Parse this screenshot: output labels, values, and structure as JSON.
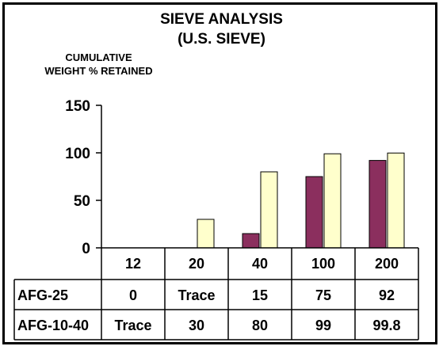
{
  "chart_data": {
    "type": "bar",
    "title": "SIEVE ANALYSIS",
    "subtitle": "(U.S. SIEVE)",
    "ylabel_line1": "CUMULATIVE",
    "ylabel_line2": "WEIGHT % RETAINED",
    "categories": [
      "12",
      "20",
      "40",
      "100",
      "200"
    ],
    "ylim": [
      0,
      150
    ],
    "yticks": [
      "0",
      "50",
      "100",
      "150"
    ],
    "grid": false,
    "series": [
      {
        "name": "AFG-25",
        "values": [
          0,
          0,
          15,
          75,
          92
        ],
        "labels": [
          "0",
          "Trace",
          "15",
          "75",
          "92"
        ],
        "color": "#8b2f5e"
      },
      {
        "name": "AFG-10-40",
        "values": [
          0,
          30,
          80,
          99,
          99.8
        ],
        "labels": [
          "Trace",
          "30",
          "80",
          "99",
          "99.8"
        ],
        "color": "#ffffcc"
      }
    ]
  }
}
